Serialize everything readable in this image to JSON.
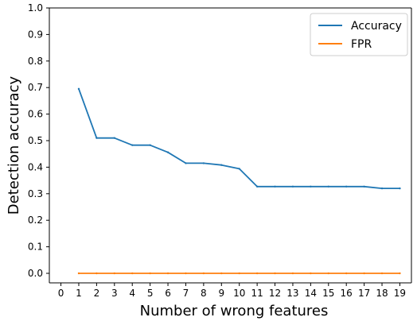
{
  "chart_data": {
    "type": "line",
    "title": "",
    "xlabel": "Number of wrong features",
    "ylabel": "Detection accuracy",
    "xlim": [
      0,
      19
    ],
    "ylim": [
      0.0,
      1.0
    ],
    "x_ticks": [
      0,
      1,
      2,
      3,
      4,
      5,
      6,
      7,
      8,
      9,
      10,
      11,
      12,
      13,
      14,
      15,
      16,
      17,
      18,
      19
    ],
    "y_ticks": [
      "0.0",
      "0.1",
      "0.2",
      "0.3",
      "0.4",
      "0.5",
      "0.6",
      "0.7",
      "0.8",
      "0.9",
      "1.0"
    ],
    "grid": false,
    "legend_position": "top-right",
    "series": [
      {
        "name": "Accuracy",
        "color": "#1f77b4",
        "x": [
          1,
          2,
          3,
          4,
          5,
          6,
          7,
          8,
          9,
          10,
          11,
          12,
          13,
          14,
          15,
          16,
          17,
          18,
          19
        ],
        "y": [
          0.695,
          0.51,
          0.51,
          0.483,
          0.483,
          0.456,
          0.415,
          0.415,
          0.408,
          0.394,
          0.327,
          0.327,
          0.327,
          0.327,
          0.327,
          0.327,
          0.327,
          0.32,
          0.32
        ]
      },
      {
        "name": "FPR",
        "color": "#ff7f0e",
        "x": [
          1,
          2,
          3,
          4,
          5,
          6,
          7,
          8,
          9,
          10,
          11,
          12,
          13,
          14,
          15,
          16,
          17,
          18,
          19
        ],
        "y": [
          0,
          0,
          0,
          0,
          0,
          0,
          0,
          0,
          0,
          0,
          0,
          0,
          0,
          0,
          0,
          0,
          0,
          0,
          0
        ]
      }
    ]
  }
}
